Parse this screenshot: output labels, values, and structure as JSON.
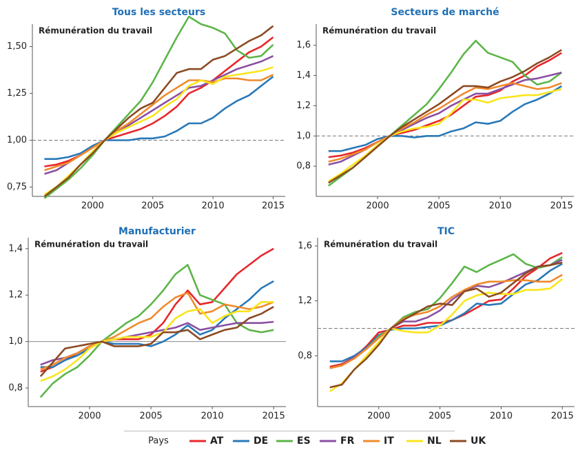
{
  "legend": {
    "title": "Pays"
  },
  "chart_data": [
    {
      "type": "line",
      "title": "Tous les secteurs",
      "annotation": "Rémunération du travail",
      "x": [
        1996,
        1997,
        1998,
        1999,
        2000,
        2001,
        2002,
        2003,
        2004,
        2005,
        2006,
        2007,
        2008,
        2009,
        2010,
        2011,
        2012,
        2013,
        2014,
        2015
      ],
      "xlim": [
        1995,
        2016
      ],
      "xticks": [
        2000,
        2005,
        2010,
        2015
      ],
      "ylim": [
        0.7,
        1.62
      ],
      "yticks": [
        {
          "value": 0.75,
          "label": "0,75"
        },
        {
          "value": 1,
          "label": "1,00"
        },
        {
          "value": 1.25,
          "label": "1,25"
        },
        {
          "value": 1.5,
          "label": "1,50"
        }
      ],
      "reference_line": {
        "value": 1,
        "style": "dashed"
      },
      "grid": false,
      "series": [
        {
          "name": "AT",
          "color": "#e8262a",
          "values": [
            0.86,
            0.87,
            0.89,
            0.92,
            0.96,
            1.0,
            1.02,
            1.04,
            1.06,
            1.09,
            1.13,
            1.18,
            1.25,
            1.28,
            1.32,
            1.37,
            1.42,
            1.47,
            1.5,
            1.55
          ]
        },
        {
          "name": "DE",
          "color": "#2878b8",
          "values": [
            0.9,
            0.9,
            0.91,
            0.93,
            0.97,
            1.0,
            1.0,
            1.0,
            1.01,
            1.01,
            1.02,
            1.05,
            1.09,
            1.09,
            1.12,
            1.17,
            1.21,
            1.24,
            1.29,
            1.34
          ]
        },
        {
          "name": "ES",
          "color": "#5cb548",
          "values": [
            0.69,
            0.74,
            0.79,
            0.85,
            0.92,
            1.0,
            1.07,
            1.14,
            1.21,
            1.31,
            1.43,
            1.55,
            1.66,
            1.62,
            1.6,
            1.57,
            1.48,
            1.44,
            1.45,
            1.51
          ]
        },
        {
          "name": "FR",
          "color": "#8a4fa3",
          "values": [
            0.82,
            0.84,
            0.88,
            0.92,
            0.96,
            1.0,
            1.04,
            1.08,
            1.12,
            1.16,
            1.2,
            1.24,
            1.28,
            1.29,
            1.32,
            1.35,
            1.38,
            1.4,
            1.42,
            1.45
          ]
        },
        {
          "name": "IT",
          "color": "#f08a2c",
          "values": [
            0.84,
            0.86,
            0.88,
            0.92,
            0.96,
            1.0,
            1.05,
            1.09,
            1.14,
            1.19,
            1.24,
            1.28,
            1.32,
            1.32,
            1.31,
            1.33,
            1.33,
            1.32,
            1.32,
            1.35
          ]
        },
        {
          "name": "NL",
          "color": "#f9e51c",
          "values": [
            0.71,
            0.75,
            0.81,
            0.87,
            0.94,
            1.0,
            1.04,
            1.07,
            1.1,
            1.13,
            1.18,
            1.22,
            1.29,
            1.32,
            1.3,
            1.34,
            1.35,
            1.36,
            1.37,
            1.39
          ]
        },
        {
          "name": "UK",
          "color": "#8b4a22",
          "values": [
            0.7,
            0.75,
            0.8,
            0.87,
            0.93,
            1.0,
            1.06,
            1.12,
            1.17,
            1.2,
            1.28,
            1.36,
            1.38,
            1.38,
            1.43,
            1.45,
            1.49,
            1.53,
            1.56,
            1.61
          ]
        }
      ]
    },
    {
      "type": "line",
      "title": "Secteurs de marché",
      "annotation": "Rémunération du travail",
      "x": [
        1996,
        1997,
        1998,
        1999,
        2000,
        2001,
        2002,
        2003,
        2004,
        2005,
        2006,
        2007,
        2008,
        2009,
        2010,
        2011,
        2012,
        2013,
        2014,
        2015
      ],
      "xlim": [
        1995,
        2016
      ],
      "xticks": [
        2000,
        2005,
        2010,
        2015
      ],
      "ylim": [
        0.6,
        1.74
      ],
      "yticks": [
        {
          "value": 0.8,
          "label": "0,8"
        },
        {
          "value": 1,
          "label": "1,0"
        },
        {
          "value": 1.2,
          "label": "1,2"
        },
        {
          "value": 1.4,
          "label": "1,4"
        },
        {
          "value": 1.6,
          "label": "1,6"
        }
      ],
      "reference_line": {
        "value": 1,
        "style": "dashed"
      },
      "grid": false,
      "series": [
        {
          "name": "AT",
          "color": "#e8262a",
          "values": [
            0.86,
            0.87,
            0.89,
            0.92,
            0.96,
            1.0,
            1.02,
            1.04,
            1.07,
            1.1,
            1.14,
            1.2,
            1.26,
            1.27,
            1.3,
            1.36,
            1.4,
            1.46,
            1.5,
            1.55
          ]
        },
        {
          "name": "DE",
          "color": "#2878b8",
          "values": [
            0.9,
            0.9,
            0.92,
            0.94,
            0.98,
            1.0,
            1.0,
            0.99,
            1.0,
            1.0,
            1.03,
            1.05,
            1.09,
            1.08,
            1.1,
            1.16,
            1.21,
            1.24,
            1.28,
            1.33
          ]
        },
        {
          "name": "ES",
          "color": "#5cb548",
          "values": [
            0.67,
            0.73,
            0.79,
            0.86,
            0.93,
            1.0,
            1.07,
            1.14,
            1.21,
            1.31,
            1.42,
            1.54,
            1.63,
            1.55,
            1.52,
            1.49,
            1.4,
            1.34,
            1.36,
            1.42
          ]
        },
        {
          "name": "FR",
          "color": "#8a4fa3",
          "values": [
            0.81,
            0.83,
            0.87,
            0.91,
            0.96,
            1.0,
            1.04,
            1.08,
            1.12,
            1.15,
            1.2,
            1.24,
            1.28,
            1.28,
            1.31,
            1.34,
            1.37,
            1.38,
            1.4,
            1.42
          ]
        },
        {
          "name": "IT",
          "color": "#f08a2c",
          "values": [
            0.83,
            0.85,
            0.88,
            0.91,
            0.96,
            1.0,
            1.05,
            1.09,
            1.14,
            1.18,
            1.23,
            1.28,
            1.32,
            1.31,
            1.33,
            1.35,
            1.33,
            1.31,
            1.32,
            1.35
          ]
        },
        {
          "name": "NL",
          "color": "#f9e51c",
          "values": [
            0.7,
            0.75,
            0.81,
            0.87,
            0.94,
            1.0,
            1.03,
            1.05,
            1.06,
            1.08,
            1.15,
            1.24,
            1.24,
            1.22,
            1.25,
            1.26,
            1.27,
            1.27,
            1.29,
            1.31
          ]
        },
        {
          "name": "UK",
          "color": "#8b4a22",
          "values": [
            0.69,
            0.74,
            0.79,
            0.86,
            0.93,
            1.0,
            1.06,
            1.11,
            1.16,
            1.21,
            1.27,
            1.33,
            1.33,
            1.32,
            1.36,
            1.39,
            1.43,
            1.48,
            1.52,
            1.57
          ]
        }
      ]
    },
    {
      "type": "line",
      "title": "Manufacturier",
      "annotation": "Rémunération du travail",
      "x": [
        1996,
        1997,
        1998,
        1999,
        2000,
        2001,
        2002,
        2003,
        2004,
        2005,
        2006,
        2007,
        2008,
        2009,
        2010,
        2011,
        2012,
        2013,
        2014,
        2015
      ],
      "xlim": [
        1995,
        2016
      ],
      "xticks": [
        2000,
        2005,
        2010,
        2015
      ],
      "ylim": [
        0.72,
        1.447
      ],
      "yticks": [
        {
          "value": 0.8,
          "label": "0,8"
        },
        {
          "value": 1,
          "label": "1,0"
        },
        {
          "value": 1.2,
          "label": "1,2"
        },
        {
          "value": 1.4,
          "label": "1,4"
        }
      ],
      "reference_line": {
        "value": 1,
        "style": "solid"
      },
      "grid": false,
      "series": [
        {
          "name": "AT",
          "color": "#e8262a",
          "values": [
            0.87,
            0.89,
            0.92,
            0.95,
            0.98,
            1.0,
            1.01,
            1.01,
            1.01,
            1.03,
            1.08,
            1.16,
            1.22,
            1.16,
            1.17,
            1.23,
            1.29,
            1.33,
            1.37,
            1.4
          ]
        },
        {
          "name": "DE",
          "color": "#2878b8",
          "values": [
            0.89,
            0.89,
            0.92,
            0.94,
            0.97,
            1.0,
            0.99,
            0.99,
            0.99,
            0.98,
            1.0,
            1.03,
            1.07,
            1.03,
            1.05,
            1.1,
            1.14,
            1.18,
            1.23,
            1.26
          ]
        },
        {
          "name": "ES",
          "color": "#5cb548",
          "values": [
            0.76,
            0.82,
            0.86,
            0.89,
            0.94,
            1.0,
            1.04,
            1.08,
            1.11,
            1.16,
            1.22,
            1.29,
            1.33,
            1.2,
            1.18,
            1.16,
            1.08,
            1.05,
            1.04,
            1.05
          ]
        },
        {
          "name": "FR",
          "color": "#8a4fa3",
          "values": [
            0.9,
            0.92,
            0.93,
            0.95,
            0.98,
            1.0,
            1.01,
            1.02,
            1.03,
            1.04,
            1.05,
            1.06,
            1.08,
            1.05,
            1.06,
            1.07,
            1.08,
            1.08,
            1.08,
            1.085
          ]
        },
        {
          "name": "IT",
          "color": "#f08a2c",
          "values": [
            0.88,
            0.9,
            0.93,
            0.95,
            0.98,
            1.0,
            1.02,
            1.05,
            1.08,
            1.1,
            1.15,
            1.19,
            1.21,
            1.12,
            1.13,
            1.16,
            1.15,
            1.14,
            1.15,
            1.17
          ]
        },
        {
          "name": "NL",
          "color": "#f9e51c",
          "values": [
            0.83,
            0.85,
            0.88,
            0.92,
            0.97,
            1.0,
            1.01,
            1.02,
            1.02,
            1.02,
            1.04,
            1.1,
            1.13,
            1.14,
            1.08,
            1.11,
            1.13,
            1.13,
            1.17,
            1.17
          ]
        },
        {
          "name": "UK",
          "color": "#8b4a22",
          "values": [
            0.85,
            0.91,
            0.97,
            0.98,
            0.99,
            1.0,
            0.98,
            0.98,
            0.98,
            0.99,
            1.04,
            1.04,
            1.05,
            1.01,
            1.03,
            1.05,
            1.06,
            1.1,
            1.12,
            1.15
          ]
        }
      ]
    },
    {
      "type": "line",
      "title": "TIC",
      "annotation": "Rémunération du travail",
      "x": [
        1996,
        1997,
        1998,
        1999,
        2000,
        2001,
        2002,
        2003,
        2004,
        2005,
        2006,
        2007,
        2008,
        2009,
        2010,
        2011,
        2012,
        2013,
        2014,
        2015
      ],
      "xlim": [
        1995,
        2016
      ],
      "xticks": [
        2000,
        2005,
        2010,
        2015
      ],
      "ylim": [
        0.43,
        1.66
      ],
      "yticks": [
        {
          "value": 0.8,
          "label": "0,8"
        },
        {
          "value": 1.2,
          "label": "1,2"
        },
        {
          "value": 1.6,
          "label": "1,6"
        }
      ],
      "reference_line": {
        "value": 1,
        "style": "dashed"
      },
      "grid": false,
      "series": [
        {
          "name": "AT",
          "color": "#e8262a",
          "values": [
            0.72,
            0.74,
            0.79,
            0.87,
            0.97,
            0.99,
            1.02,
            1.02,
            1.04,
            1.04,
            1.06,
            1.1,
            1.15,
            1.2,
            1.21,
            1.29,
            1.38,
            1.44,
            1.51,
            1.55
          ]
        },
        {
          "name": "DE",
          "color": "#2878b8",
          "values": [
            0.76,
            0.76,
            0.8,
            0.86,
            0.95,
            0.99,
            1.0,
            1.0,
            1.01,
            1.02,
            1.06,
            1.11,
            1.18,
            1.17,
            1.18,
            1.25,
            1.32,
            1.35,
            1.42,
            1.47
          ]
        },
        {
          "name": "ES",
          "color": "#5cb548",
          "values": [
            0.71,
            0.73,
            0.79,
            0.85,
            0.94,
            1.0,
            1.08,
            1.12,
            1.14,
            1.22,
            1.33,
            1.45,
            1.41,
            1.46,
            1.5,
            1.54,
            1.47,
            1.44,
            1.46,
            1.52
          ]
        },
        {
          "name": "FR",
          "color": "#8a4fa3",
          "values": [
            0.71,
            0.73,
            0.79,
            0.85,
            0.93,
            1.0,
            1.05,
            1.05,
            1.08,
            1.13,
            1.21,
            1.27,
            1.31,
            1.3,
            1.33,
            1.37,
            1.41,
            1.45,
            1.46,
            1.5
          ]
        },
        {
          "name": "IT",
          "color": "#f08a2c",
          "values": [
            0.71,
            0.73,
            0.78,
            0.85,
            0.93,
            1.0,
            1.07,
            1.1,
            1.12,
            1.16,
            1.23,
            1.28,
            1.32,
            1.34,
            1.34,
            1.35,
            1.35,
            1.34,
            1.34,
            1.39
          ]
        },
        {
          "name": "NL",
          "color": "#f9e51c",
          "values": [
            0.54,
            0.6,
            0.7,
            0.8,
            0.9,
            1.0,
            0.98,
            0.97,
            0.97,
            1.02,
            1.1,
            1.2,
            1.24,
            1.26,
            1.25,
            1.25,
            1.28,
            1.28,
            1.29,
            1.36
          ]
        },
        {
          "name": "UK",
          "color": "#8b4a22",
          "values": [
            0.57,
            0.59,
            0.7,
            0.78,
            0.88,
            1.0,
            1.06,
            1.11,
            1.16,
            1.18,
            1.17,
            1.27,
            1.29,
            1.23,
            1.26,
            1.33,
            1.4,
            1.45,
            1.46,
            1.48
          ]
        }
      ]
    }
  ]
}
